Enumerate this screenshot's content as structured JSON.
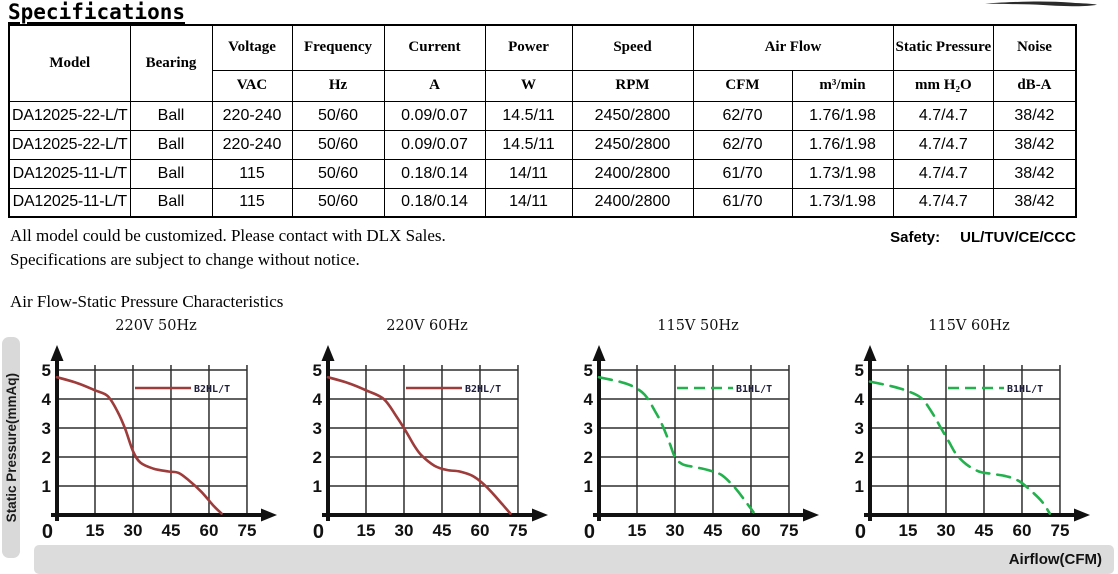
{
  "page": {
    "title": "Specifications",
    "notes": [
      "All model could be customized. Please contact with DLX Sales.",
      "Specifications are subject to change without notice."
    ],
    "safety_label": "Safety:",
    "safety_value": "UL/TUV/CE/CCC",
    "charts_section_title": "Air Flow-Static Pressure Characteristics",
    "y_axis_bar_label": "Static Pressure(mmAq)",
    "x_axis_bar_label": "Airflow(CFM)"
  },
  "table": {
    "header_row1": [
      "Model",
      "Bearing",
      "Voltage",
      "Frequency",
      "Current",
      "Power",
      "Speed",
      "Air Flow",
      "Static Pressure",
      "Noise"
    ],
    "header_row2": [
      "VAC",
      "Hz",
      "A",
      "W",
      "RPM",
      "CFM",
      "m³/min",
      "mm H₂O",
      "dB-A"
    ],
    "rows": [
      [
        "DA12025-22-L/T",
        "Ball",
        "220-240",
        "50/60",
        "0.09/0.07",
        "14.5/11",
        "2450/2800",
        "62/70",
        "1.76/1.98",
        "4.7/4.7",
        "38/42"
      ],
      [
        "DA12025-22-L/T",
        "Ball",
        "220-240",
        "50/60",
        "0.09/0.07",
        "14.5/11",
        "2450/2800",
        "62/70",
        "1.76/1.98",
        "4.7/4.7",
        "38/42"
      ],
      [
        "DA12025-11-L/T",
        "Ball",
        "115",
        "50/60",
        "0.18/0.14",
        "14/11",
        "2400/2800",
        "61/70",
        "1.73/1.98",
        "4.7/4.7",
        "38/42"
      ],
      [
        "DA12025-11-L/T",
        "Ball",
        "115",
        "50/60",
        "0.18/0.14",
        "14/11",
        "2400/2800",
        "61/70",
        "1.73/1.98",
        "4.7/4.7",
        "38/42"
      ]
    ]
  },
  "chart_data": [
    {
      "type": "line",
      "title": "220V 50Hz",
      "xlabel": "Airflow(CFM)",
      "ylabel": "Static Pressure(mmAq)",
      "xticks": [
        0,
        15,
        30,
        45,
        60,
        75
      ],
      "yticks": [
        0,
        1,
        2,
        3,
        4,
        5
      ],
      "xlim": [
        0,
        80
      ],
      "ylim": [
        0,
        5.3
      ],
      "grid": true,
      "legend_position": "top-right",
      "series": [
        {
          "name": "B2HL/T",
          "color": "#9e3b3b",
          "dashed": false,
          "points": [
            [
              0,
              4.75
            ],
            [
              8,
              4.55
            ],
            [
              15,
              4.3
            ],
            [
              20,
              4.1
            ],
            [
              24,
              3.55
            ],
            [
              27,
              2.95
            ],
            [
              30,
              2.2
            ],
            [
              33,
              1.8
            ],
            [
              38,
              1.6
            ],
            [
              44,
              1.5
            ],
            [
              48,
              1.45
            ],
            [
              52,
              1.2
            ],
            [
              57,
              0.8
            ],
            [
              62,
              0.3
            ],
            [
              65,
              0.05
            ]
          ]
        }
      ]
    },
    {
      "type": "line",
      "title": "220V 60Hz",
      "xlabel": "Airflow(CFM)",
      "ylabel": "Static Pressure(mmAq)",
      "xticks": [
        0,
        15,
        30,
        45,
        60,
        75
      ],
      "yticks": [
        0,
        1,
        2,
        3,
        4,
        5
      ],
      "xlim": [
        0,
        80
      ],
      "ylim": [
        0,
        5.3
      ],
      "grid": true,
      "legend_position": "top-right",
      "series": [
        {
          "name": "B2HL/T",
          "color": "#9e3b3b",
          "dashed": false,
          "points": [
            [
              0,
              4.75
            ],
            [
              8,
              4.55
            ],
            [
              15,
              4.3
            ],
            [
              22,
              4.0
            ],
            [
              27,
              3.4
            ],
            [
              31,
              2.85
            ],
            [
              34,
              2.4
            ],
            [
              37,
              2.05
            ],
            [
              42,
              1.7
            ],
            [
              47,
              1.55
            ],
            [
              52,
              1.5
            ],
            [
              57,
              1.35
            ],
            [
              61,
              1.1
            ],
            [
              65,
              0.75
            ],
            [
              69,
              0.35
            ],
            [
              72,
              0.05
            ]
          ]
        }
      ]
    },
    {
      "type": "line",
      "title": "115V 50Hz",
      "xlabel": "Airflow(CFM)",
      "ylabel": "Static Pressure(mmAq)",
      "xticks": [
        0,
        15,
        30,
        45,
        60,
        75
      ],
      "yticks": [
        0,
        1,
        2,
        3,
        4,
        5
      ],
      "xlim": [
        0,
        80
      ],
      "ylim": [
        0,
        5.3
      ],
      "grid": true,
      "legend_position": "top-right",
      "series": [
        {
          "name": "B1HL/T",
          "color": "#22b14c",
          "dashed": true,
          "points": [
            [
              0,
              4.75
            ],
            [
              8,
              4.6
            ],
            [
              13,
              4.45
            ],
            [
              18,
              4.15
            ],
            [
              22,
              3.6
            ],
            [
              25,
              3.1
            ],
            [
              28,
              2.45
            ],
            [
              30,
              2.0
            ],
            [
              33,
              1.75
            ],
            [
              38,
              1.65
            ],
            [
              43,
              1.55
            ],
            [
              48,
              1.4
            ],
            [
              52,
              1.1
            ],
            [
              55,
              0.8
            ],
            [
              58,
              0.45
            ],
            [
              61,
              0.1
            ]
          ]
        }
      ]
    },
    {
      "type": "line",
      "title": "115V 60Hz",
      "xlabel": "Airflow(CFM)",
      "ylabel": "Static Pressure(mmAq)",
      "xticks": [
        0,
        15,
        30,
        45,
        60,
        75
      ],
      "yticks": [
        0,
        1,
        2,
        3,
        4,
        5
      ],
      "xlim": [
        0,
        80
      ],
      "ylim": [
        0,
        5.3
      ],
      "grid": true,
      "legend_position": "top-right",
      "series": [
        {
          "name": "B1HL/T",
          "color": "#22b14c",
          "dashed": true,
          "points": [
            [
              0,
              4.6
            ],
            [
              8,
              4.45
            ],
            [
              14,
              4.3
            ],
            [
              20,
              4.05
            ],
            [
              24,
              3.6
            ],
            [
              28,
              3.0
            ],
            [
              31,
              2.55
            ],
            [
              34,
              2.1
            ],
            [
              38,
              1.75
            ],
            [
              43,
              1.5
            ],
            [
              48,
              1.42
            ],
            [
              53,
              1.35
            ],
            [
              57,
              1.25
            ],
            [
              60,
              1.1
            ],
            [
              64,
              0.8
            ],
            [
              68,
              0.45
            ],
            [
              71,
              0.05
            ]
          ]
        }
      ]
    }
  ],
  "colors": {
    "curve_red": "#9e3b3b",
    "curve_green": "#22b14c",
    "grid": "#2e2e2e",
    "axis": "#111111",
    "bar_gray": "#d9d9d9"
  }
}
